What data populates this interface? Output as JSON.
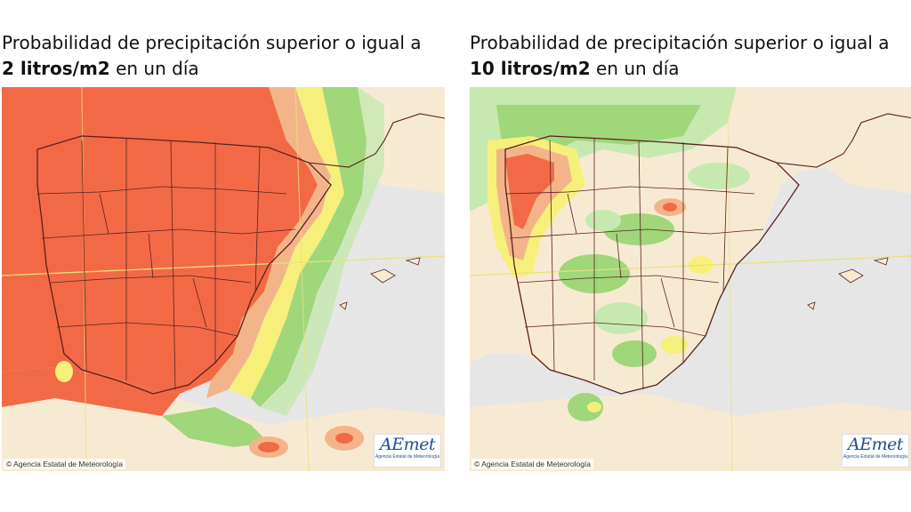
{
  "left_panel": {
    "title_line1": "Probabilidad de precipitación superior o igual a",
    "title_bold": "2 litros/m2",
    "title_rest": " en un día",
    "copyright": "© Agencia Estatal de Meteorología",
    "logo_text": "AEmet",
    "logo_sub": "Agencia Estatal de Meteorología"
  },
  "right_panel": {
    "title_line1": "Probabilidad de precipitación superior o igual a",
    "title_bold": "10 litros/m2",
    "title_rest": " en un día",
    "copyright": "© Agencia Estatal de Meteorología",
    "logo_text": "AEmet",
    "logo_sub": "Agencia Estatal de Meteorología"
  },
  "colors": {
    "sea": "#e6e6e6",
    "land": "#f7ead2",
    "high_probability": "#f26a45",
    "mid_probability": "#f4b48a",
    "yellow": "#f6f07a",
    "green": "#9fd77a",
    "light_green": "#c6e9b0",
    "borders": "#5a2020"
  }
}
